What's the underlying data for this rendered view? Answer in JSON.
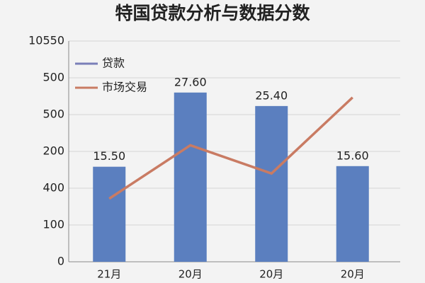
{
  "chart_data": {
    "type": "bar",
    "title": "特国贷款分析与数据分数",
    "categories": [
      "21月",
      "20月",
      "20月",
      "20月"
    ],
    "series": [
      {
        "name": "贷款",
        "color": "#5b7fbf",
        "values": [
          15.5,
          27.6,
          25.4,
          15.6
        ],
        "value_labels": [
          "15.50",
          "27.60",
          "25.40",
          "15.60"
        ]
      },
      {
        "name": "市场交易",
        "color": "#c97b63",
        "type": "line",
        "values": [
          10.3,
          19.0,
          14.4,
          26.8
        ]
      }
    ],
    "ylim": [
      0,
      36
    ],
    "yticks": [
      0,
      {
        "value": 6,
        "label": "100"
      },
      {
        "value": 12,
        "label": "400"
      },
      {
        "value": 18,
        "label": "200"
      },
      {
        "value": 24,
        "label": "500"
      },
      {
        "value": 30,
        "label": "500"
      },
      {
        "value": 36,
        "label": "10550"
      }
    ],
    "grid": true,
    "legend": "top-left"
  }
}
